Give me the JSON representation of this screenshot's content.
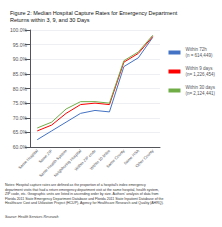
{
  "chart_data": {
    "type": "line",
    "title": "Figure 2: Median Hospital Capture Rates for Emergency Department\nReturns within 3, 9, and 30 Days",
    "categories": [
      "Same Hospital",
      "Same ZIP",
      "Same Health System",
      "Neighboring Hospital",
      "Within ZIP code",
      "Within 10 Miles",
      "Same County",
      "Same HSA",
      "Other County"
    ],
    "series": [
      {
        "name": "Within 72h\n(n = 614,449)",
        "color": "#4472C4",
        "values": [
          62.5,
          65.5,
          68.5,
          71.5,
          72.5,
          72.0,
          87.5,
          90.5,
          97.5
        ]
      },
      {
        "name": "Within 9 days\n(n= 1,226,454)",
        "color": "#FF0000",
        "values": [
          65.5,
          67.5,
          71.5,
          74.5,
          75.0,
          74.5,
          89.0,
          92.0,
          97.8
        ]
      },
      {
        "name": "Within 30 days\n(n= 2,124,441)",
        "color": "#70AD47",
        "values": [
          66.5,
          68.5,
          73.0,
          75.5,
          75.5,
          75.0,
          89.5,
          92.5,
          98.2
        ]
      }
    ],
    "ylim": [
      60.0,
      100.0
    ],
    "yticks": [
      {
        "value": 60,
        "label": "60.0%"
      },
      {
        "value": 65,
        "label": "65.0%"
      },
      {
        "value": 70,
        "label": "70.0%"
      },
      {
        "value": 75,
        "label": "75.0%"
      },
      {
        "value": 80,
        "label": "80.0%"
      },
      {
        "value": 85,
        "label": "85.0%"
      },
      {
        "value": 90,
        "label": "90.0%"
      },
      {
        "value": 95,
        "label": "95.0%"
      },
      {
        "value": 100,
        "label": "100.0%"
      }
    ],
    "grid": true,
    "legend": "right",
    "annotations": [
      "Notes: Hospital capture rates are defined as the proportion of a hospital's index emergency\ndepartment visits that had a return emergency department visit at the same hospital, health system,\nZIP code, etc. Geographic units are listed in ascending order by size. Authors' analysis of data from\nFlorida 2011 State Emergency Department Database and Florida 2011 State Inpatient Database of the\nHealthcare Cost and Utilization Project (HCUP), Agency for Healthcare Research and Quality (AHRQ).",
      "Source: Health Services Research"
    ]
  }
}
